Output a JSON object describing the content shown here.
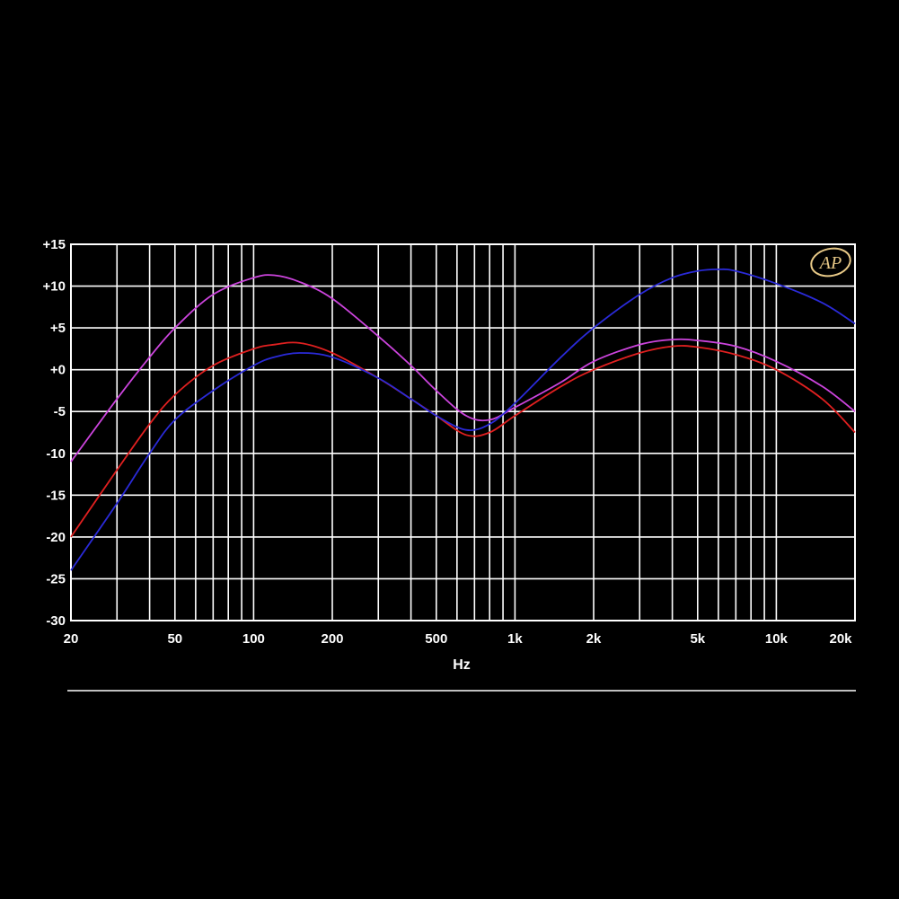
{
  "chart_data": {
    "type": "line",
    "xlabel": "Hz",
    "x_scale": "log",
    "xlim": [
      20,
      20000
    ],
    "ylim": [
      -30,
      15
    ],
    "grid": true,
    "background": "#000000",
    "logo": "AP",
    "xticks": [
      {
        "value": 20,
        "label": "20"
      },
      {
        "value": 50,
        "label": "50"
      },
      {
        "value": 100,
        "label": "100"
      },
      {
        "value": 200,
        "label": "200"
      },
      {
        "value": 500,
        "label": "500"
      },
      {
        "value": 1000,
        "label": "1k"
      },
      {
        "value": 2000,
        "label": "2k"
      },
      {
        "value": 5000,
        "label": "5k"
      },
      {
        "value": 10000,
        "label": "10k"
      },
      {
        "value": 20000,
        "label": "20k"
      }
    ],
    "yticks": [
      {
        "value": 15,
        "label": "+15"
      },
      {
        "value": 10,
        "label": "+10"
      },
      {
        "value": 5,
        "label": "+5"
      },
      {
        "value": 0,
        "label": "+0"
      },
      {
        "value": -5,
        "label": "-5"
      },
      {
        "value": -10,
        "label": "-10"
      },
      {
        "value": -15,
        "label": "-15"
      },
      {
        "value": -20,
        "label": "-20"
      },
      {
        "value": -25,
        "label": "-25"
      },
      {
        "value": -30,
        "label": "-30"
      }
    ],
    "series": [
      {
        "color": "#cc44dd",
        "x": [
          20,
          30,
          40,
          50,
          70,
          100,
          120,
          150,
          200,
          300,
          400,
          500,
          650,
          800,
          1000,
          1500,
          2000,
          3000,
          4000,
          5000,
          7000,
          10000,
          15000,
          20000
        ],
        "y": [
          -11,
          -3.5,
          1.5,
          5,
          9,
          11,
          11.3,
          10.5,
          8.5,
          4,
          0.5,
          -2.5,
          -5.5,
          -6,
          -4.5,
          -1.5,
          1,
          3,
          3.6,
          3.5,
          2.8,
          1,
          -2,
          -5
        ]
      },
      {
        "color": "#e02020",
        "x": [
          20,
          30,
          40,
          50,
          70,
          100,
          120,
          150,
          200,
          300,
          400,
          500,
          650,
          800,
          1000,
          1500,
          2000,
          3000,
          4000,
          5000,
          7000,
          10000,
          15000,
          20000
        ],
        "y": [
          -20,
          -12,
          -6.5,
          -3,
          0.5,
          2.5,
          3,
          3.2,
          2,
          -1,
          -3.5,
          -5.5,
          -7.8,
          -7.5,
          -5.5,
          -2,
          0,
          2,
          2.8,
          2.7,
          1.8,
          0,
          -3.5,
          -7.5
        ]
      },
      {
        "color": "#2a2ad8",
        "x": [
          20,
          30,
          40,
          50,
          70,
          100,
          120,
          150,
          200,
          300,
          400,
          500,
          650,
          800,
          1000,
          1500,
          2000,
          3000,
          4000,
          5000,
          6000,
          7000,
          10000,
          15000,
          20000
        ],
        "y": [
          -24,
          -16,
          -10,
          -6,
          -2.5,
          0.5,
          1.5,
          2,
          1.5,
          -1,
          -3.5,
          -5.5,
          -7.2,
          -6.5,
          -4,
          1.5,
          5,
          9,
          11,
          11.8,
          12,
          11.8,
          10.3,
          8,
          5.5
        ]
      }
    ]
  }
}
